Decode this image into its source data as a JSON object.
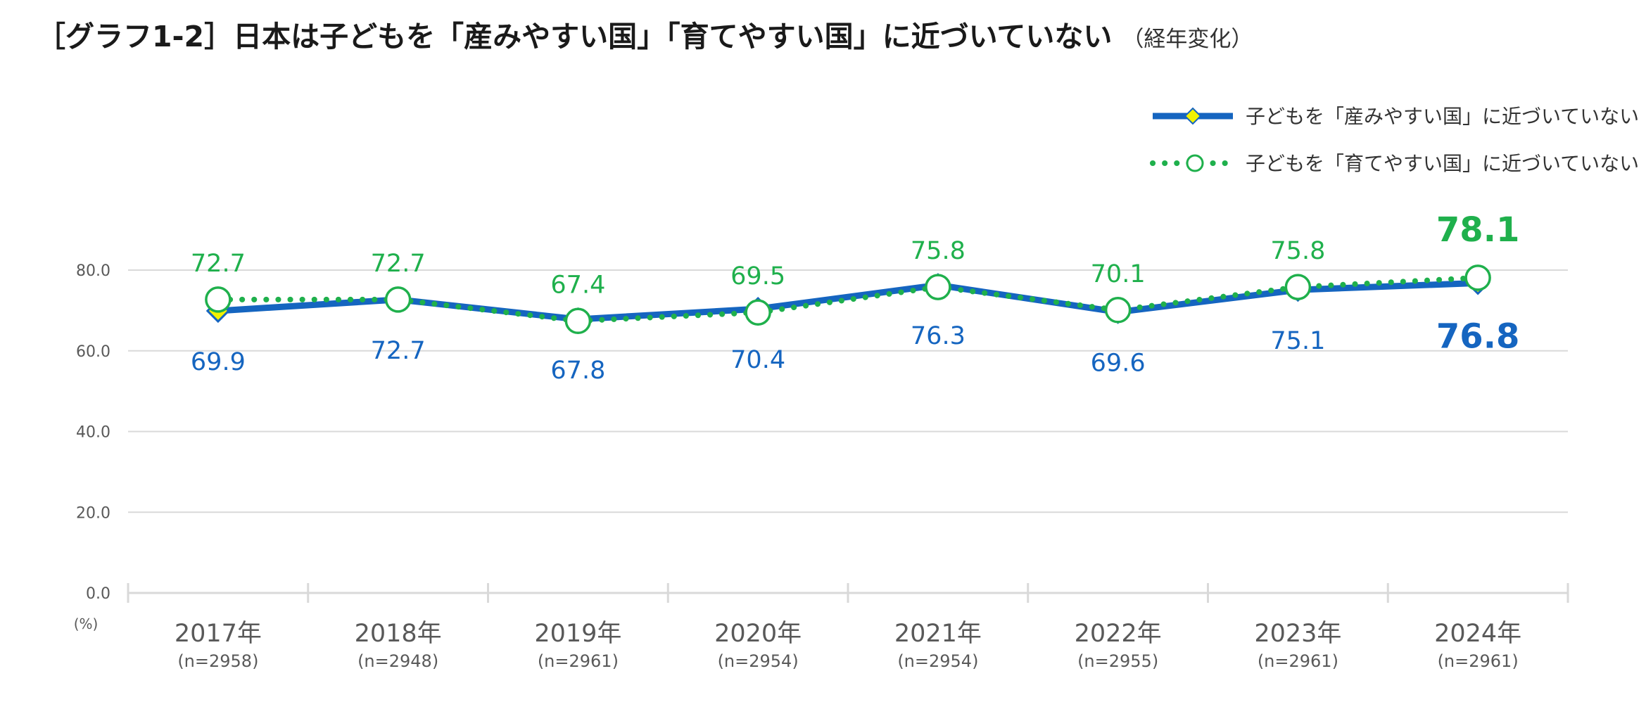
{
  "header": {
    "title": "［グラフ1-2］日本は子どもを「産みやすい国」「育てやすい国」に近づいていない",
    "subtitle": "（経年変化）"
  },
  "colors": {
    "series1": "#1565C0",
    "series1_marker": "#F2F200",
    "series2": "#1FB04C",
    "axis_text": "#595959",
    "grid": "#D9D9D9"
  },
  "chart_data": {
    "type": "line",
    "categories": [
      "2017年",
      "2018年",
      "2019年",
      "2020年",
      "2021年",
      "2022年",
      "2023年",
      "2024年"
    ],
    "category_sublabels": [
      "(n=2958)",
      "(n=2948)",
      "(n=2961)",
      "(n=2954)",
      "(n=2954)",
      "(n=2955)",
      "(n=2961)",
      "(n=2961)"
    ],
    "series": [
      {
        "name": "子どもを「産みやすい国」に近づいていない",
        "values": [
          69.9,
          72.7,
          67.8,
          70.4,
          76.3,
          69.6,
          75.1,
          76.8
        ],
        "labels": [
          "69.9",
          "72.7",
          "67.8",
          "70.4",
          "76.3",
          "69.6",
          "75.1",
          "76.8"
        ],
        "style": "solid",
        "marker": "diamond"
      },
      {
        "name": "子どもを「育てやすい国」に近づいていない",
        "values": [
          72.7,
          72.7,
          67.4,
          69.5,
          75.8,
          70.1,
          75.8,
          78.1
        ],
        "labels": [
          "72.7",
          "72.7",
          "67.4",
          "69.5",
          "75.8",
          "70.1",
          "75.8",
          "78.1"
        ],
        "style": "dotted",
        "marker": "circle"
      }
    ],
    "yticks": [
      "0.0",
      "20.0",
      "40.0",
      "60.0",
      "80.0"
    ],
    "ylim": [
      0,
      80
    ],
    "ylabel": "(%)",
    "grid": true,
    "legend_position": "top-right",
    "highlight_last": true
  }
}
